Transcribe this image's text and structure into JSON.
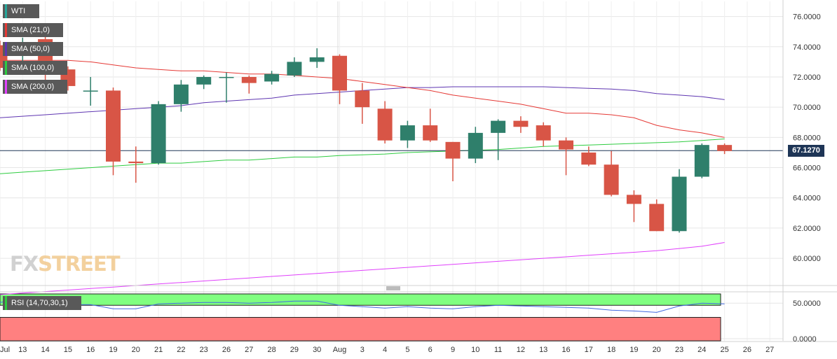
{
  "chart_data": [
    {
      "type": "candlestick",
      "title": "",
      "ylim": [
        58.2,
        77.0
      ],
      "y_ticks": [
        "76.0000",
        "74.0000",
        "72.0000",
        "70.0000",
        "68.0000",
        "66.0000",
        "64.0000",
        "62.0000",
        "60.0000"
      ],
      "y_tick_values": [
        76,
        74,
        72,
        70,
        68,
        66,
        64,
        62,
        60
      ],
      "x_tick_labels": [
        "Jul",
        "13",
        "14",
        "15",
        "16",
        "19",
        "20",
        "21",
        "22",
        "23",
        "26",
        "27",
        "28",
        "29",
        "30",
        "Aug",
        "3",
        "4",
        "5",
        "6",
        "9",
        "10",
        "11",
        "12",
        "13",
        "16",
        "17",
        "18",
        "19",
        "20",
        "23",
        "24",
        "25",
        "26",
        "27"
      ],
      "grid": true,
      "legend_position": "top-left",
      "last_price": 67.127,
      "last_price_label": "67.1270",
      "legend": [
        {
          "label": "WTI",
          "color": "#26a69a"
        },
        {
          "label": "SMA (21,0)",
          "color": "#e53935"
        },
        {
          "label": "SMA (50,0)",
          "color": "#5e35b1"
        },
        {
          "label": "SMA (100,0)",
          "color": "#2ecc40"
        },
        {
          "label": "SMA (200,0)",
          "color": "#e040fb"
        }
      ],
      "colors": {
        "up": "#2f7f6b",
        "down": "#d85546",
        "sma21": "#e53935",
        "sma50": "#5e35b1",
        "sma100": "#2ecc40",
        "sma200": "#e040fb",
        "last_price_line": "#1e3556"
      },
      "candles": [
        {
          "date": "Jul 12",
          "open": 74.1,
          "high": 74.4,
          "low": 72.4,
          "close": 72.6
        },
        {
          "date": "Jul 13",
          "open": 73.4,
          "high": 74.6,
          "low": 72.8,
          "close": 74.3
        },
        {
          "date": "Jul 14",
          "open": 74.5,
          "high": 74.8,
          "low": 71.8,
          "close": 72.3
        },
        {
          "date": "Jul 15",
          "open": 72.5,
          "high": 72.7,
          "low": 71.1,
          "close": 71.4
        },
        {
          "date": "Jul 16",
          "open": 71.1,
          "high": 72.0,
          "low": 70.1,
          "close": 71.1
        },
        {
          "date": "Jul 19",
          "open": 71.1,
          "high": 71.3,
          "low": 65.5,
          "close": 66.4
        },
        {
          "date": "Jul 20",
          "open": 66.4,
          "high": 67.4,
          "low": 65.0,
          "close": 66.3
        },
        {
          "date": "Jul 21",
          "open": 66.3,
          "high": 70.4,
          "low": 66.2,
          "close": 70.2
        },
        {
          "date": "Jul 22",
          "open": 70.2,
          "high": 71.8,
          "low": 69.7,
          "close": 71.5
        },
        {
          "date": "Jul 23",
          "open": 71.5,
          "high": 72.1,
          "low": 71.2,
          "close": 72.0
        },
        {
          "date": "Jul 26",
          "open": 72.0,
          "high": 72.3,
          "low": 70.3,
          "close": 72.0
        },
        {
          "date": "Jul 27",
          "open": 72.0,
          "high": 72.1,
          "low": 70.9,
          "close": 71.6
        },
        {
          "date": "Jul 28",
          "open": 71.7,
          "high": 72.4,
          "low": 71.5,
          "close": 72.2
        },
        {
          "date": "Jul 29",
          "open": 72.1,
          "high": 73.3,
          "low": 72.0,
          "close": 73.0
        },
        {
          "date": "Jul 30",
          "open": 73.0,
          "high": 73.9,
          "low": 72.6,
          "close": 73.3
        },
        {
          "date": "Aug 2",
          "open": 73.4,
          "high": 73.5,
          "low": 70.2,
          "close": 71.1
        },
        {
          "date": "Aug 3",
          "open": 71.1,
          "high": 71.6,
          "low": 68.9,
          "close": 70.0
        },
        {
          "date": "Aug 4",
          "open": 69.9,
          "high": 70.4,
          "low": 67.6,
          "close": 67.8
        },
        {
          "date": "Aug 5",
          "open": 67.8,
          "high": 69.1,
          "low": 67.3,
          "close": 68.8
        },
        {
          "date": "Aug 6",
          "open": 68.8,
          "high": 69.9,
          "low": 67.7,
          "close": 67.8
        },
        {
          "date": "Aug 9",
          "open": 67.7,
          "high": 67.7,
          "low": 65.1,
          "close": 66.6
        },
        {
          "date": "Aug 10",
          "open": 66.6,
          "high": 68.7,
          "low": 66.3,
          "close": 68.3
        },
        {
          "date": "Aug 11",
          "open": 68.3,
          "high": 69.2,
          "low": 66.5,
          "close": 69.1
        },
        {
          "date": "Aug 12",
          "open": 69.1,
          "high": 69.4,
          "low": 68.3,
          "close": 68.7
        },
        {
          "date": "Aug 13",
          "open": 68.8,
          "high": 69.0,
          "low": 67.4,
          "close": 67.8
        },
        {
          "date": "Aug 16",
          "open": 67.8,
          "high": 68.0,
          "low": 65.5,
          "close": 67.2
        },
        {
          "date": "Aug 17",
          "open": 67.0,
          "high": 67.4,
          "low": 66.1,
          "close": 66.2
        },
        {
          "date": "Aug 18",
          "open": 66.2,
          "high": 67.1,
          "low": 64.1,
          "close": 64.2
        },
        {
          "date": "Aug 19",
          "open": 64.2,
          "high": 64.5,
          "low": 62.4,
          "close": 63.6
        },
        {
          "date": "Aug 20",
          "open": 63.6,
          "high": 63.9,
          "low": 61.8,
          "close": 61.8
        },
        {
          "date": "Aug 23",
          "open": 61.8,
          "high": 65.9,
          "low": 61.7,
          "close": 65.4
        },
        {
          "date": "Aug 24",
          "open": 65.4,
          "high": 67.6,
          "low": 65.3,
          "close": 67.5
        },
        {
          "date": "Aug 25",
          "open": 67.5,
          "high": 67.6,
          "low": 66.9,
          "close": 67.1
        }
      ],
      "sma21": [
        73.1,
        73.1,
        73.1,
        73.1,
        73.0,
        72.8,
        72.6,
        72.5,
        72.4,
        72.4,
        72.3,
        72.2,
        72.2,
        72.1,
        72.0,
        71.9,
        71.7,
        71.5,
        71.3,
        71.1,
        70.8,
        70.6,
        70.4,
        70.2,
        69.9,
        69.6,
        69.6,
        69.5,
        69.3,
        68.8,
        68.5,
        68.3,
        68.0
      ],
      "sma50": [
        69.3,
        69.4,
        69.5,
        69.6,
        69.7,
        69.8,
        69.9,
        70.0,
        70.1,
        70.3,
        70.4,
        70.5,
        70.6,
        70.8,
        70.9,
        71.0,
        71.1,
        71.2,
        71.3,
        71.3,
        71.35,
        71.35,
        71.35,
        71.35,
        71.35,
        71.3,
        71.25,
        71.2,
        71.1,
        70.9,
        70.8,
        70.7,
        70.5
      ],
      "sma100": [
        65.6,
        65.7,
        65.8,
        65.9,
        66.0,
        66.1,
        66.2,
        66.3,
        66.3,
        66.4,
        66.5,
        66.5,
        66.6,
        66.7,
        66.7,
        66.8,
        66.85,
        66.9,
        67.0,
        67.05,
        67.1,
        67.15,
        67.2,
        67.3,
        67.4,
        67.45,
        67.5,
        67.55,
        67.6,
        67.65,
        67.7,
        67.8,
        67.9
      ],
      "sma200": [
        57.6,
        57.7,
        57.8,
        57.9,
        58.0,
        58.1,
        58.2,
        58.3,
        58.4,
        58.5,
        58.6,
        58.7,
        58.8,
        58.9,
        59.0,
        59.1,
        59.2,
        59.3,
        59.4,
        59.5,
        59.6,
        59.7,
        59.8,
        59.9,
        60.0,
        60.1,
        60.2,
        60.3,
        60.4,
        60.5,
        60.65,
        60.8,
        61.05
      ]
    },
    {
      "type": "line",
      "title": "",
      "legend": [
        {
          "label": "RSI (14,70,30,1)",
          "color": "#2ecc40"
        }
      ],
      "y_ticks": [
        "50.0000",
        "0.0000"
      ],
      "y_tick_values": [
        50,
        0
      ],
      "ylim": [
        -3,
        63
      ],
      "bands": [
        {
          "from": 47,
          "to": 63,
          "color": "#80ff80"
        },
        {
          "from": -3,
          "to": 30,
          "color": "#ff8080"
        }
      ],
      "series": [
        {
          "color": "#4169e1",
          "values": [
            51,
            57,
            50,
            48,
            48,
            42,
            42,
            49,
            50,
            51,
            51,
            50,
            51,
            53,
            53,
            47,
            45,
            43,
            45,
            43,
            42,
            45,
            47,
            46,
            45,
            44,
            43,
            40,
            39,
            37,
            46,
            50,
            49
          ]
        }
      ]
    }
  ],
  "watermark": {
    "part1": "FX",
    "part2": "STREET"
  }
}
